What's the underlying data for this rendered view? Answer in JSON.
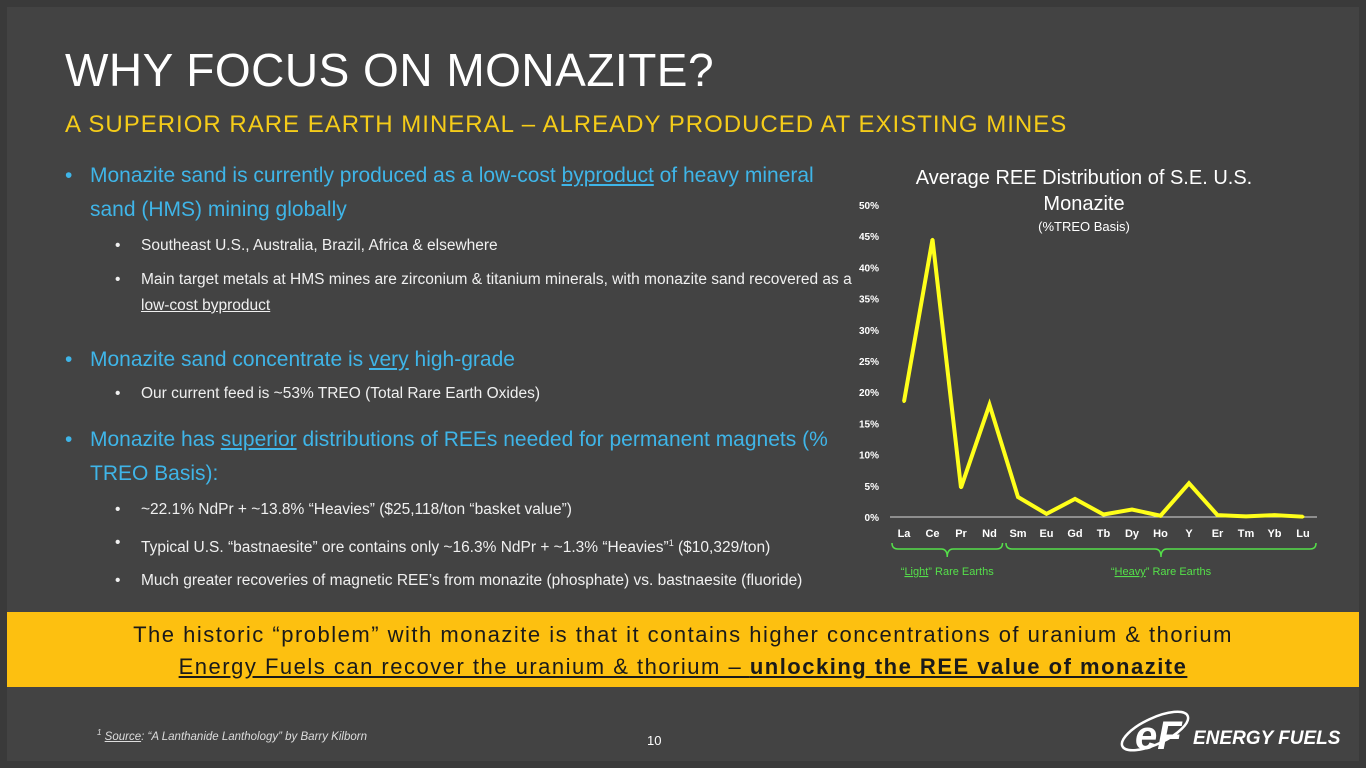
{
  "slide": {
    "title": "WHY FOCUS ON MONAZITE?",
    "subtitle": "A SUPERIOR RARE EARTH MINERAL – ALREADY PRODUCED AT EXISTING MINES",
    "page_number": "10"
  },
  "bullets": {
    "b1": {
      "pre": "Monazite sand is currently produced as a low-cost ",
      "link": "byproduct",
      "post": " of heavy mineral sand (HMS) mining globally",
      "subs": [
        "Southeast U.S., Australia, Brazil, Africa & elsewhere"
      ],
      "sub2_pre": "Main target metals at HMS mines are zirconium & titanium minerals, with monazite sand recovered as a ",
      "sub2_link": "low-cost byproduct"
    },
    "b2": {
      "pre": "Monazite sand concentrate is ",
      "link": "very",
      "post": " high-grade",
      "sub": "Our current feed is ~53% TREO (Total Rare Earth Oxides)"
    },
    "b3": {
      "pre": "Monazite has ",
      "link": "superior",
      "post": " distributions of REEs needed for permanent magnets (% TREO Basis):",
      "sub1": "~22.1% NdPr + ~13.8% “Heavies” ($25,118/ton “basket value”)",
      "sub2_pre": "Typical U.S. “bastnaesite” ore contains only ~16.3% NdPr + ~1.3% “Heavies”",
      "sub2_fn": "1",
      "sub2_post": " ($10,329/ton)",
      "sub3": "Much greater recoveries of magnetic REE’s from monazite (phosphate) vs. bastnaesite (fluoride)"
    }
  },
  "banner": {
    "line1": "The historic “problem” with monazite is that it contains higher concentrations of uranium & thorium",
    "line2_pre": "Energy Fuels can recover the uranium & thorium – ",
    "line2_bold": "unlocking the REE value of monazite"
  },
  "footnote": {
    "num": "1",
    "label": "Source",
    "text": ": “A Lanthanide Lanthology” by Barry Kilborn"
  },
  "logo": {
    "text": "ENERGY FUELS",
    "mark": "eF"
  },
  "colors": {
    "accent_yellow": "#f5cc19",
    "bullet_blue": "#3fb5e8",
    "line": "#ffff1a",
    "bracket": "#55e04a",
    "banner": "#fdc010"
  },
  "chart_data": {
    "type": "line",
    "title": "Average REE Distribution of S.E. U.S. Monazite",
    "subtitle": "(%TREO Basis)",
    "categories": [
      "La",
      "Ce",
      "Pr",
      "Nd",
      "Sm",
      "Eu",
      "Gd",
      "Tb",
      "Dy",
      "Ho",
      "Y",
      "Er",
      "Tm",
      "Yb",
      "Lu"
    ],
    "values": [
      18.5,
      44.5,
      4.7,
      18,
      3.2,
      0.5,
      2.9,
      0.4,
      1.2,
      0.2,
      5.4,
      0.3,
      0.1,
      0.3,
      0.05
    ],
    "ylim": [
      0,
      50
    ],
    "yticks": [
      "0%",
      "5%",
      "10%",
      "15%",
      "20%",
      "25%",
      "30%",
      "35%",
      "40%",
      "45%",
      "50%"
    ],
    "groups": [
      {
        "pre": "“",
        "link": "Light",
        "post": "” Rare Earths",
        "from": 0,
        "to": 3
      },
      {
        "pre": "“",
        "link": "Heavy",
        "post": "” Rare Earths",
        "from": 4,
        "to": 14
      }
    ]
  }
}
